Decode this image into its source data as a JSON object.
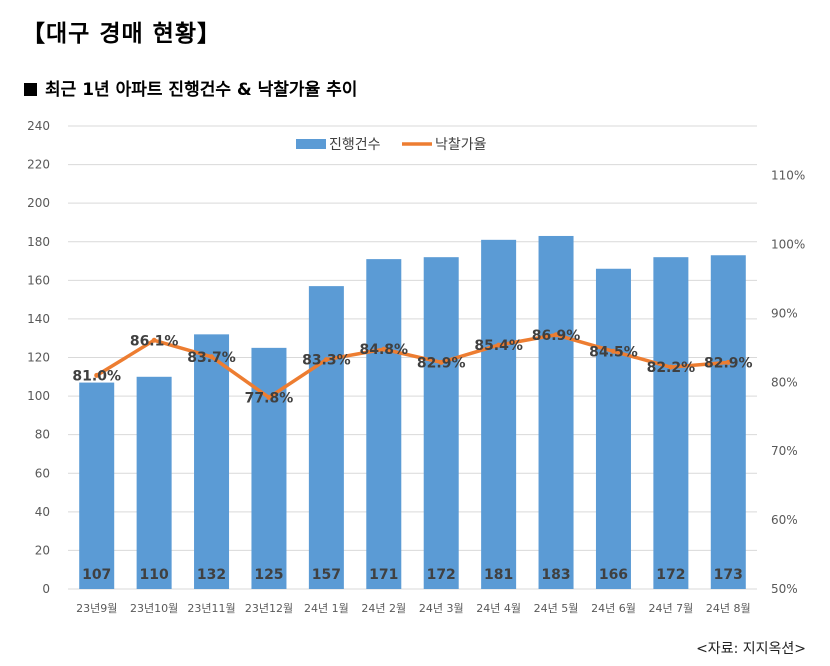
{
  "header": {
    "title": "【대구 경매 현황】",
    "subtitle": "최근 1년 아파트 진행건수 & 낙찰가율 추이"
  },
  "source": "<자료: 지지옥션>",
  "colors": {
    "bar": "#5b9bd5",
    "line": "#ed7d31",
    "grid": "#d9d9d9"
  },
  "chart_data": {
    "type": "bar",
    "categories": [
      "23년9월",
      "23년10월",
      "23년11월",
      "23년12월",
      "24년 1월",
      "24년 2월",
      "24년 3월",
      "24년 4월",
      "24년 5월",
      "24년 6월",
      "24년 7월",
      "24년 8월"
    ],
    "series": [
      {
        "name": "진행건수",
        "type": "bar",
        "axis": "left",
        "values": [
          107,
          110,
          132,
          125,
          157,
          171,
          172,
          181,
          183,
          166,
          172,
          173
        ],
        "labels": [
          "107",
          "110",
          "132",
          "125",
          "157",
          "171",
          "172",
          "181",
          "183",
          "166",
          "172",
          "173"
        ]
      },
      {
        "name": "낙찰가율",
        "type": "line",
        "axis": "right",
        "values": [
          81.0,
          86.1,
          83.7,
          77.8,
          83.3,
          84.8,
          82.9,
          85.4,
          86.9,
          84.5,
          82.2,
          82.9
        ],
        "labels": [
          "81.0%",
          "86.1%",
          "83.7%",
          "77.8%",
          "83.3%",
          "84.8%",
          "82.9%",
          "85.4%",
          "86.9%",
          "84.5%",
          "82.2%",
          "82.9%"
        ]
      }
    ],
    "y_left": {
      "range": [
        0,
        240
      ],
      "ticks": [
        "0",
        "20",
        "40",
        "60",
        "80",
        "100",
        "120",
        "140",
        "160",
        "180",
        "200",
        "220",
        "240"
      ]
    },
    "y_right": {
      "range": [
        50,
        117.2
      ],
      "ticks": [
        "50%",
        "60%",
        "70%",
        "80%",
        "90%",
        "100%",
        "110%"
      ]
    },
    "grid": true,
    "legend": "top-center"
  }
}
